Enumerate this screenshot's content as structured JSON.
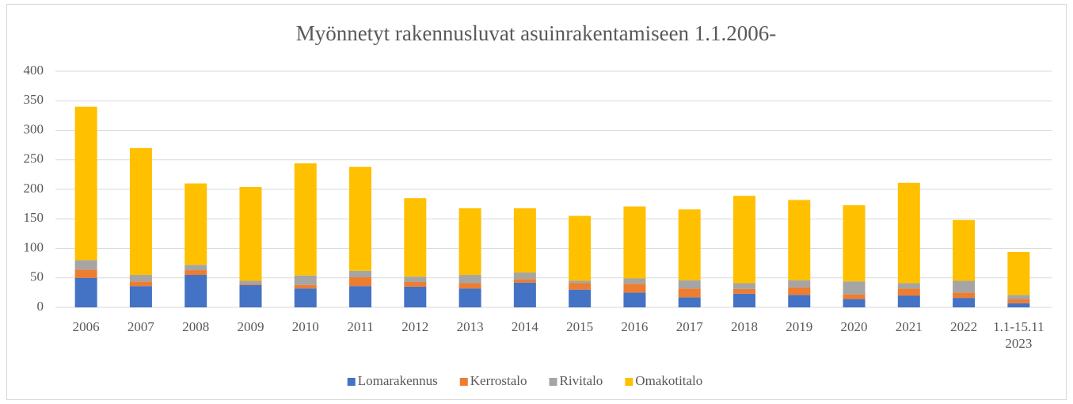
{
  "chart_data": {
    "type": "stacked_bar",
    "title": "Myönnetyt rakennusluvat asuinrakentamiseen 1.1.2006-",
    "categories": [
      "2006",
      "2007",
      "2008",
      "2009",
      "2010",
      "2011",
      "2012",
      "2013",
      "2014",
      "2015",
      "2016",
      "2017",
      "2018",
      "2019",
      "2020",
      "2021",
      "2022",
      "1.1-15.11\n2023"
    ],
    "series": [
      {
        "name": "Lomarakennus",
        "color": "#4472c4",
        "values": [
          50,
          36,
          55,
          38,
          32,
          36,
          35,
          32,
          42,
          30,
          25,
          17,
          23,
          21,
          14,
          20,
          16,
          7
        ]
      },
      {
        "name": "Kerrostalo",
        "color": "#ed7d31",
        "values": [
          14,
          8,
          8,
          2,
          6,
          15,
          8,
          9,
          6,
          11,
          15,
          15,
          8,
          13,
          8,
          12,
          9,
          7
        ]
      },
      {
        "name": "Rivitalo",
        "color": "#a5a5a5",
        "values": [
          16,
          11,
          9,
          5,
          16,
          11,
          9,
          14,
          11,
          4,
          9,
          14,
          10,
          12,
          22,
          9,
          20,
          7
        ]
      },
      {
        "name": "Omakotitalo",
        "color": "#ffc000",
        "values": [
          260,
          215,
          138,
          159,
          190,
          176,
          133,
          113,
          109,
          110,
          122,
          120,
          148,
          136,
          129,
          170,
          103,
          73
        ]
      }
    ],
    "ylim": [
      0,
      400
    ],
    "yticks": [
      0,
      50,
      100,
      150,
      200,
      250,
      300,
      350,
      400
    ],
    "grid": true,
    "legend": "bottom"
  }
}
